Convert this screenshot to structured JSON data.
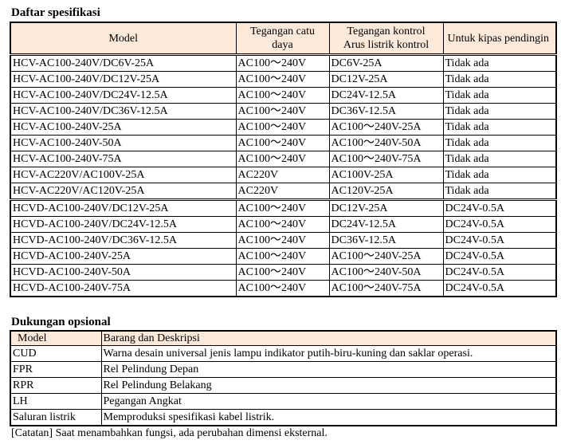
{
  "spec_section": {
    "title": "Daftar spesifikasi",
    "headers": {
      "model": "Model",
      "supply_line1": "Tegangan catu",
      "supply_line2": "daya",
      "control_line1": "Tegangan kontrol",
      "control_line2": "Arus listrik kontrol",
      "fan": "Untuk kipas pendingin"
    },
    "rows": [
      [
        "HCV-AC100-240V/DC6V-25A",
        "AC100～240V",
        "DC6V-25A",
        "Tidak ada"
      ],
      [
        "HCV-AC100-240V/DC12V-25A",
        "AC100～240V",
        "DC12V-25A",
        "Tidak ada"
      ],
      [
        "HCV-AC100-240V/DC24V-12.5A",
        "AC100～240V",
        "DC24V-12.5A",
        "Tidak ada"
      ],
      [
        "HCV-AC100-240V/DC36V-12.5A",
        "AC100～240V",
        "DC36V-12.5A",
        "Tidak ada"
      ],
      [
        "HCV-AC100-240V-25A",
        "AC100～240V",
        "AC100～240V-25A",
        "Tidak ada"
      ],
      [
        "HCV-AC100-240V-50A",
        "AC100～240V",
        "AC100～240V-50A",
        "Tidak ada"
      ],
      [
        "HCV-AC100-240V-75A",
        "AC100～240V",
        "AC100～240V-75A",
        "Tidak ada"
      ],
      [
        "HCV-AC220V/AC100V-25A",
        "AC220V",
        "AC100V-25A",
        "Tidak ada"
      ],
      [
        "HCV-AC220V/AC120V-25A",
        "AC220V",
        "AC120V-25A",
        "Tidak ada"
      ],
      [
        "HCVD-AC100-240V/DC12V-25A",
        "AC100～240V",
        "DC12V-25A",
        "DC24V-0.5A"
      ],
      [
        "HCVD-AC100-240V/DC24V-12.5A",
        "AC100～240V",
        "DC24V-12.5A",
        "DC24V-0.5A"
      ],
      [
        "HCVD-AC100-240V/DC36V-12.5A",
        "AC100～240V",
        "DC36V-12.5A",
        "DC24V-0.5A"
      ],
      [
        "HCVD-AC100-240V-25A",
        "AC100～240V",
        "AC100～240V-25A",
        "DC24V-0.5A"
      ],
      [
        "HCVD-AC100-240V-50A",
        "AC100～240V",
        "AC100～240V-50A",
        "DC24V-0.5A"
      ],
      [
        "HCVD-AC100-240V-75A",
        "AC100～240V",
        "AC100～240V-75A",
        "DC24V-0.5A"
      ]
    ]
  },
  "option_section": {
    "title": "Dukungan opsional",
    "headers": {
      "model": "Model",
      "description": "Barang dan Deskripsi"
    },
    "rows": [
      [
        "CUD",
        "Warna desain universal jenis lampu indikator putih-biru-kuning dan saklar operasi."
      ],
      [
        "FPR",
        "Rel Pelindung Depan"
      ],
      [
        "RPR",
        "Rel Pelindung Belakang"
      ],
      [
        "LH",
        "Pegangan Angkat"
      ],
      [
        "Saluran listrik",
        "Memproduksi spesifikasi kabel listrik."
      ]
    ]
  },
  "note": "[Catatan] Saat menambahkan fungsi, ada perubahan dimensi eksternal.",
  "colors": {
    "header_fill": "#fde9d9",
    "border": "#000000"
  }
}
